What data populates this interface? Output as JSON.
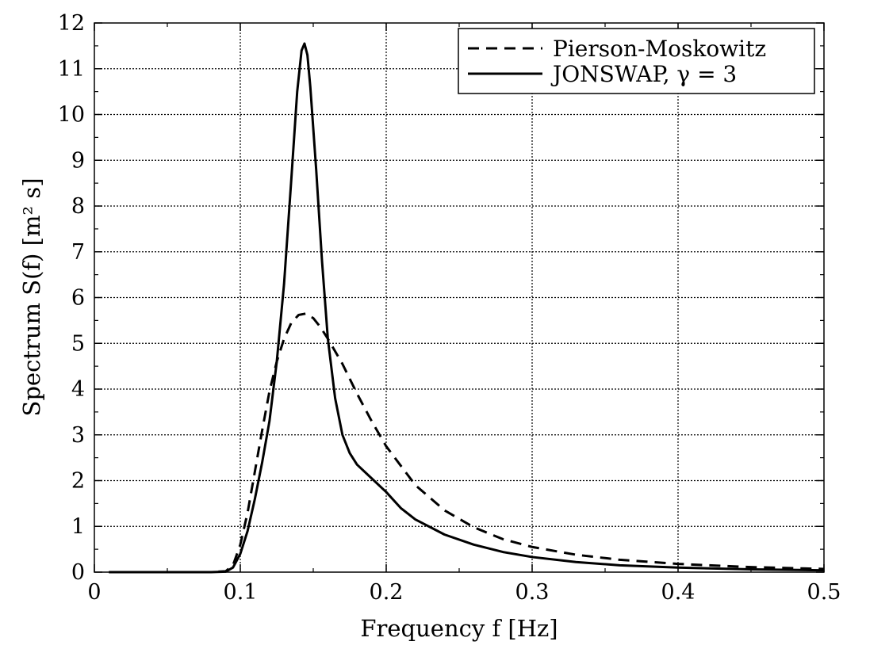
{
  "chart_data": {
    "type": "line",
    "title": "",
    "xlabel": "Frequency f [Hz]",
    "ylabel": "Spectrum S(f) [m² s]",
    "xlim": [
      0,
      0.5
    ],
    "ylim": [
      0,
      12
    ],
    "x_ticks": [
      0,
      0.1,
      0.2,
      0.3,
      0.4,
      0.5
    ],
    "x_tick_labels": [
      "0",
      "0.1",
      "0.2",
      "0.3",
      "0.4",
      "0.5"
    ],
    "y_ticks": [
      0,
      1,
      2,
      3,
      4,
      5,
      6,
      7,
      8,
      9,
      10,
      11,
      12
    ],
    "y_tick_labels": [
      "0",
      "1",
      "2",
      "3",
      "4",
      "5",
      "6",
      "7",
      "8",
      "9",
      "10",
      "11",
      "12"
    ],
    "grid": true,
    "legend_position": "top-right",
    "series": [
      {
        "name": "Pierson-Moskowitz",
        "style": "dashed",
        "color": "#000000",
        "points": [
          [
            0.01,
            0.0
          ],
          [
            0.08,
            0.0
          ],
          [
            0.09,
            0.02
          ],
          [
            0.095,
            0.15
          ],
          [
            0.1,
            0.6
          ],
          [
            0.105,
            1.3
          ],
          [
            0.11,
            2.2
          ],
          [
            0.115,
            3.1
          ],
          [
            0.12,
            3.95
          ],
          [
            0.125,
            4.6
          ],
          [
            0.13,
            5.1
          ],
          [
            0.135,
            5.45
          ],
          [
            0.14,
            5.62
          ],
          [
            0.145,
            5.65
          ],
          [
            0.15,
            5.55
          ],
          [
            0.155,
            5.35
          ],
          [
            0.16,
            5.1
          ],
          [
            0.17,
            4.55
          ],
          [
            0.18,
            3.9
          ],
          [
            0.19,
            3.3
          ],
          [
            0.2,
            2.75
          ],
          [
            0.22,
            1.9
          ],
          [
            0.24,
            1.35
          ],
          [
            0.26,
            0.98
          ],
          [
            0.28,
            0.72
          ],
          [
            0.3,
            0.55
          ],
          [
            0.33,
            0.38
          ],
          [
            0.36,
            0.27
          ],
          [
            0.4,
            0.18
          ],
          [
            0.45,
            0.11
          ],
          [
            0.5,
            0.07
          ]
        ]
      },
      {
        "name": "JONSWAP, γ = 3",
        "style": "solid",
        "color": "#000000",
        "points": [
          [
            0.01,
            0.0
          ],
          [
            0.08,
            0.0
          ],
          [
            0.09,
            0.01
          ],
          [
            0.095,
            0.1
          ],
          [
            0.1,
            0.4
          ],
          [
            0.105,
            0.9
          ],
          [
            0.11,
            1.6
          ],
          [
            0.115,
            2.4
          ],
          [
            0.12,
            3.3
          ],
          [
            0.125,
            4.6
          ],
          [
            0.13,
            6.3
          ],
          [
            0.135,
            8.6
          ],
          [
            0.139,
            10.5
          ],
          [
            0.142,
            11.4
          ],
          [
            0.144,
            11.55
          ],
          [
            0.146,
            11.3
          ],
          [
            0.148,
            10.6
          ],
          [
            0.152,
            8.8
          ],
          [
            0.156,
            6.8
          ],
          [
            0.16,
            5.1
          ],
          [
            0.165,
            3.8
          ],
          [
            0.17,
            3.0
          ],
          [
            0.175,
            2.6
          ],
          [
            0.18,
            2.35
          ],
          [
            0.19,
            2.05
          ],
          [
            0.2,
            1.75
          ],
          [
            0.21,
            1.4
          ],
          [
            0.22,
            1.15
          ],
          [
            0.24,
            0.82
          ],
          [
            0.26,
            0.6
          ],
          [
            0.28,
            0.44
          ],
          [
            0.3,
            0.33
          ],
          [
            0.33,
            0.22
          ],
          [
            0.36,
            0.15
          ],
          [
            0.4,
            0.1
          ],
          [
            0.45,
            0.06
          ],
          [
            0.5,
            0.04
          ]
        ]
      }
    ]
  }
}
